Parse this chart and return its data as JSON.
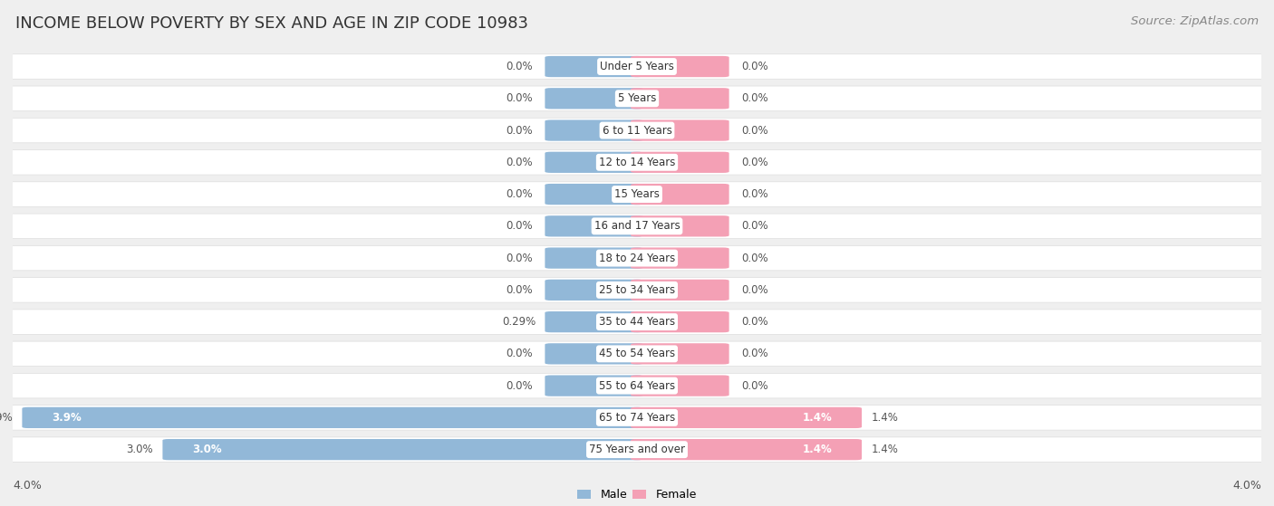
{
  "title": "INCOME BELOW POVERTY BY SEX AND AGE IN ZIP CODE 10983",
  "source": "Source: ZipAtlas.com",
  "categories": [
    "Under 5 Years",
    "5 Years",
    "6 to 11 Years",
    "12 to 14 Years",
    "15 Years",
    "16 and 17 Years",
    "18 to 24 Years",
    "25 to 34 Years",
    "35 to 44 Years",
    "45 to 54 Years",
    "55 to 64 Years",
    "65 to 74 Years",
    "75 Years and over"
  ],
  "male_values": [
    0.0,
    0.0,
    0.0,
    0.0,
    0.0,
    0.0,
    0.0,
    0.0,
    0.29,
    0.0,
    0.0,
    3.9,
    3.0
  ],
  "female_values": [
    0.0,
    0.0,
    0.0,
    0.0,
    0.0,
    0.0,
    0.0,
    0.0,
    0.0,
    0.0,
    0.0,
    1.4,
    1.4
  ],
  "male_color": "#92b8d8",
  "female_color": "#f4a0b5",
  "male_label": "Male",
  "female_label": "Female",
  "xlim": 4.0,
  "min_bar_width": 0.55,
  "background_color": "#efefef",
  "row_bg_color": "#f7f7f9",
  "bar_bg_color": "#ffffff",
  "title_fontsize": 13,
  "source_fontsize": 9.5,
  "label_fontsize": 8.5,
  "tick_fontsize": 9,
  "category_fontsize": 8.5
}
